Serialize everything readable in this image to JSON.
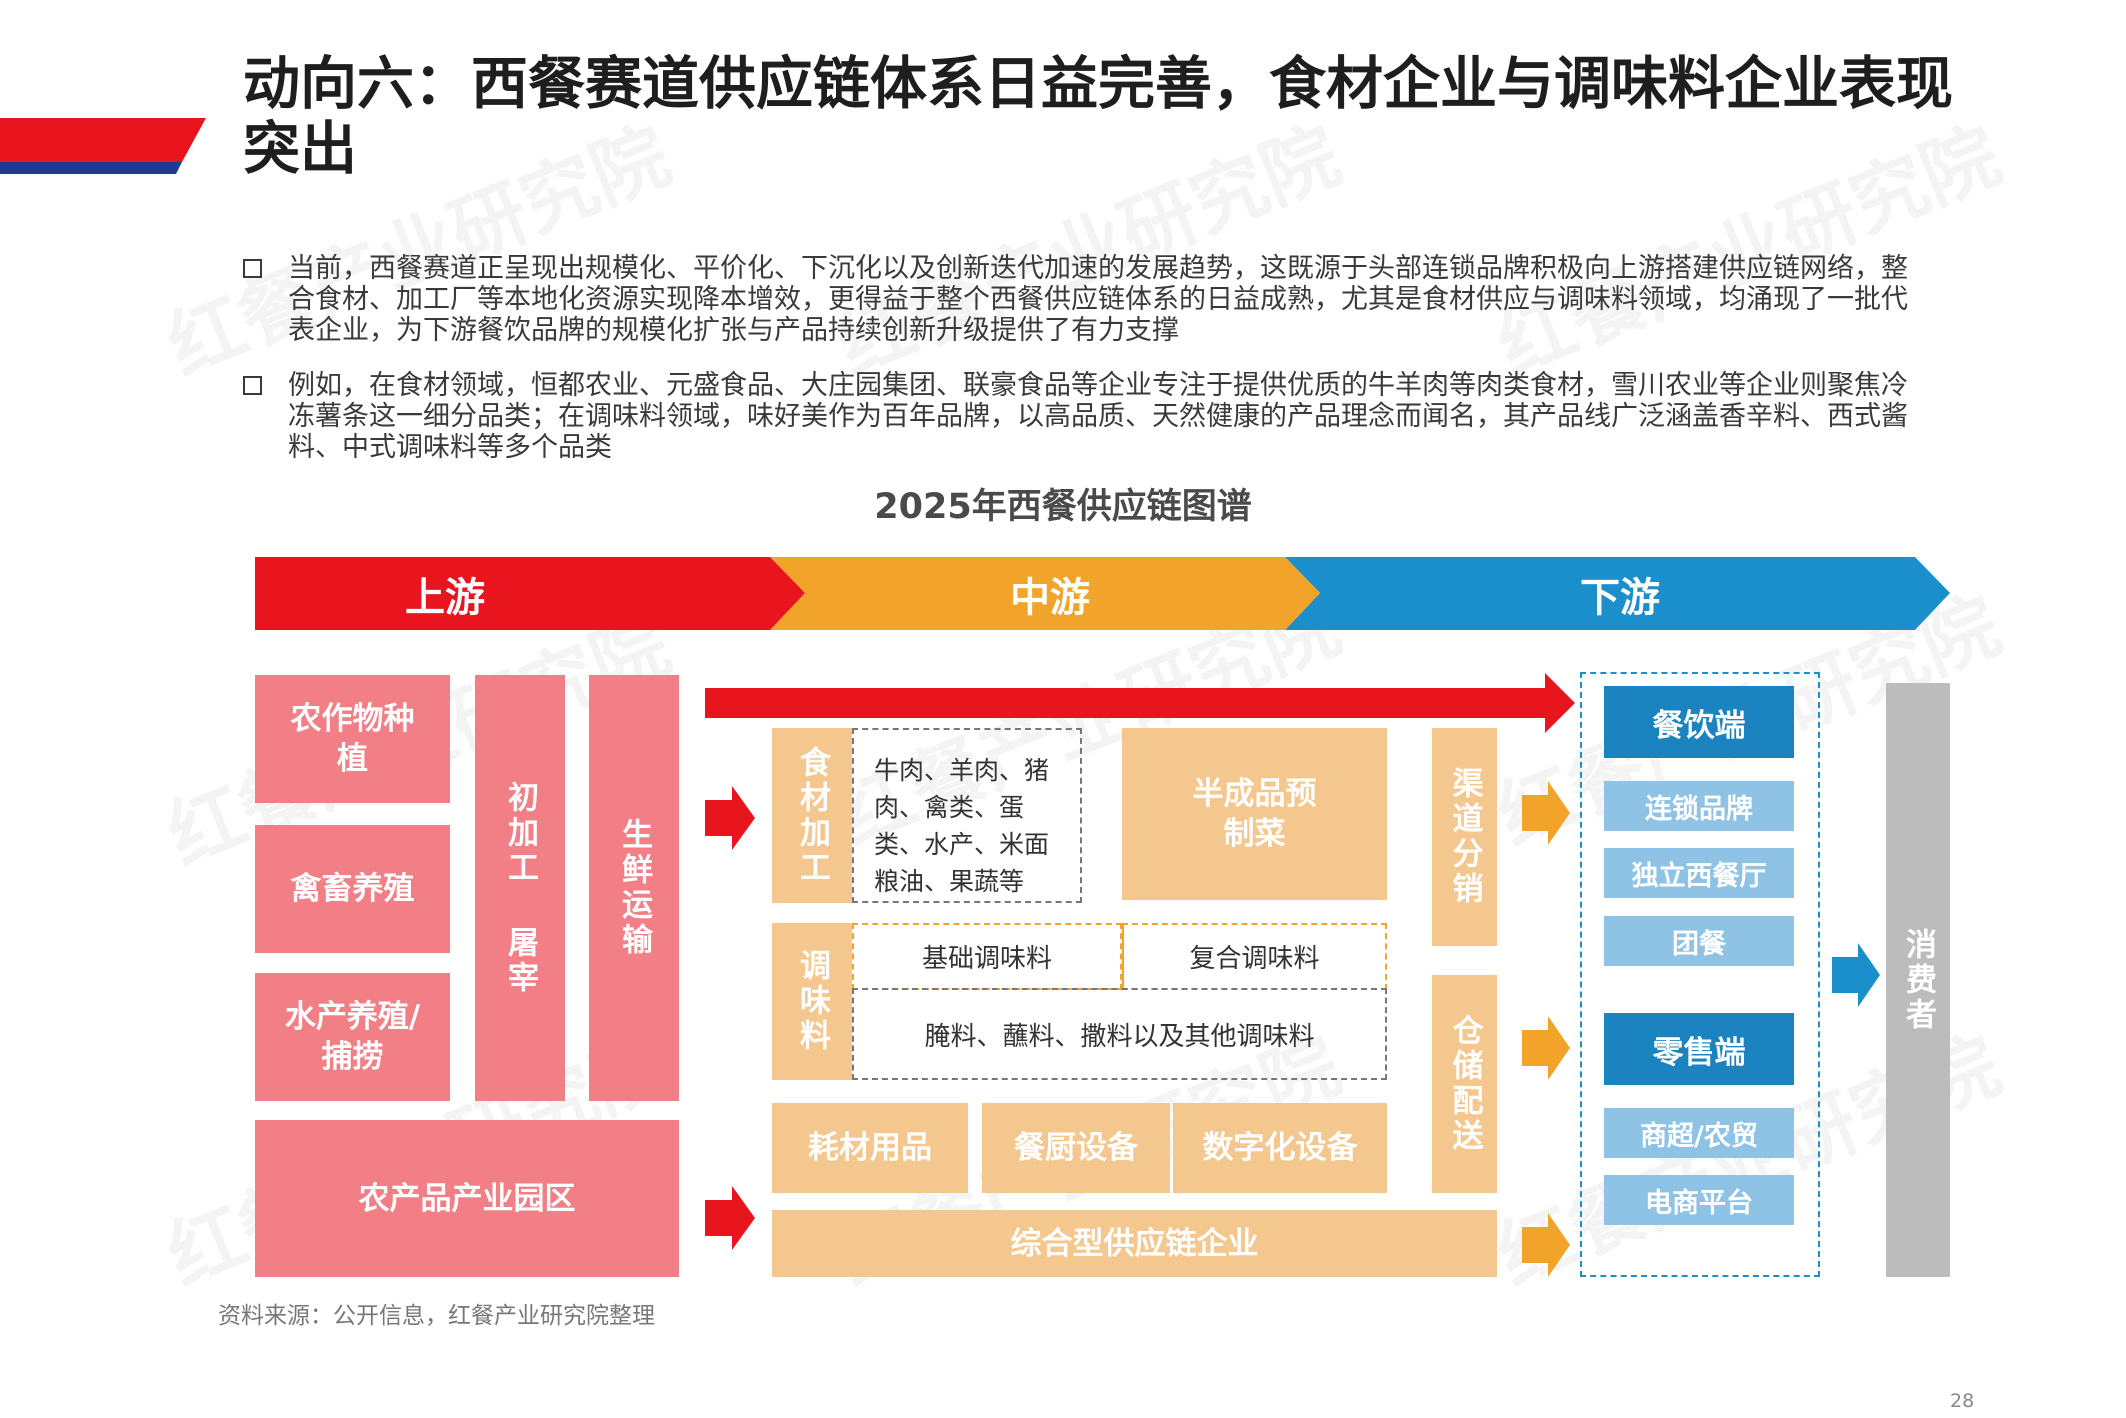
{
  "title": "动向六：西餐赛道供应链体系日益完善，食材企业与调味料企业表现突出",
  "bullets": [
    "当前，西餐赛道正呈现出规模化、平价化、下沉化以及创新迭代加速的发展趋势，这既源于头部连锁品牌积极向上游搭建供应链网络，整合食材、加工厂等本地化资源实现降本增效，更得益于整个西餐供应链体系的日益成熟，尤其是食材供应与调味料领域，均涌现了一批代表企业，为下游餐饮品牌的规模化扩张与产品持续创新升级提供了有力支撑",
    "例如，在食材领域，恒都农业、元盛食品、大庄园集团、联豪食品等企业专注于提供优质的牛羊肉等肉类食材，雪川农业等企业则聚焦冷冻薯条这一细分品类；在调味料领域，味好美作为百年品牌，以高品质、天然健康的产品理念而闻名，其产品线广泛涵盖香辛料、西式酱料、中式调味料等多个品类"
  ],
  "chart_title": "2025年西餐供应链图谱",
  "stages": {
    "upstream": "上游",
    "midstream": "中游",
    "downstream": "下游"
  },
  "upstream": {
    "crop": "农作物种植",
    "livestock": "禽畜养殖",
    "aquatic": "水产养殖/捕捞",
    "processing": "初加工 屠宰",
    "fresh_transport": "生鲜运输",
    "park": "农产品产业园区"
  },
  "midstream": {
    "food_processing": "食材加工",
    "food_items": "牛肉、羊肉、猪肉、禽类、蛋类、水产、米面粮油、果蔬等",
    "semi_finished": "半成品预制菜",
    "seasoning": "调味料",
    "basic_seasoning": "基础调味料",
    "compound_seasoning": "复合调味料",
    "other_seasoning": "腌料、蘸料、撒料以及其他调味料",
    "consumables": "耗材用品",
    "kitchen_equipment": "餐厨设备",
    "digital_equipment": "数字化设备",
    "integrated": "综合型供应链企业",
    "channel_distribution": "渠道分销",
    "warehouse_delivery": "仓储配送"
  },
  "downstream": {
    "catering": "餐饮端",
    "catering_items": [
      "连锁品牌",
      "独立西餐厅",
      "团餐"
    ],
    "retail": "零售端",
    "retail_items": [
      "商超/农贸",
      "电商平台"
    ],
    "consumer": "消费者"
  },
  "watermark": {
    "brand": "红餐",
    "institute": "产业研究院"
  },
  "source": "资料来源：公开信息，红餐产业研究院整理",
  "page_number": "28",
  "colors": {
    "red": "#e8141e",
    "orange": "#f2a42a",
    "blue": "#1a8fcc",
    "pink": "#f27e86",
    "peach": "#f4c78e",
    "blue_dark": "#1a83c0",
    "blue_light": "#8ec3e6",
    "gray": "#bcbcbc"
  }
}
